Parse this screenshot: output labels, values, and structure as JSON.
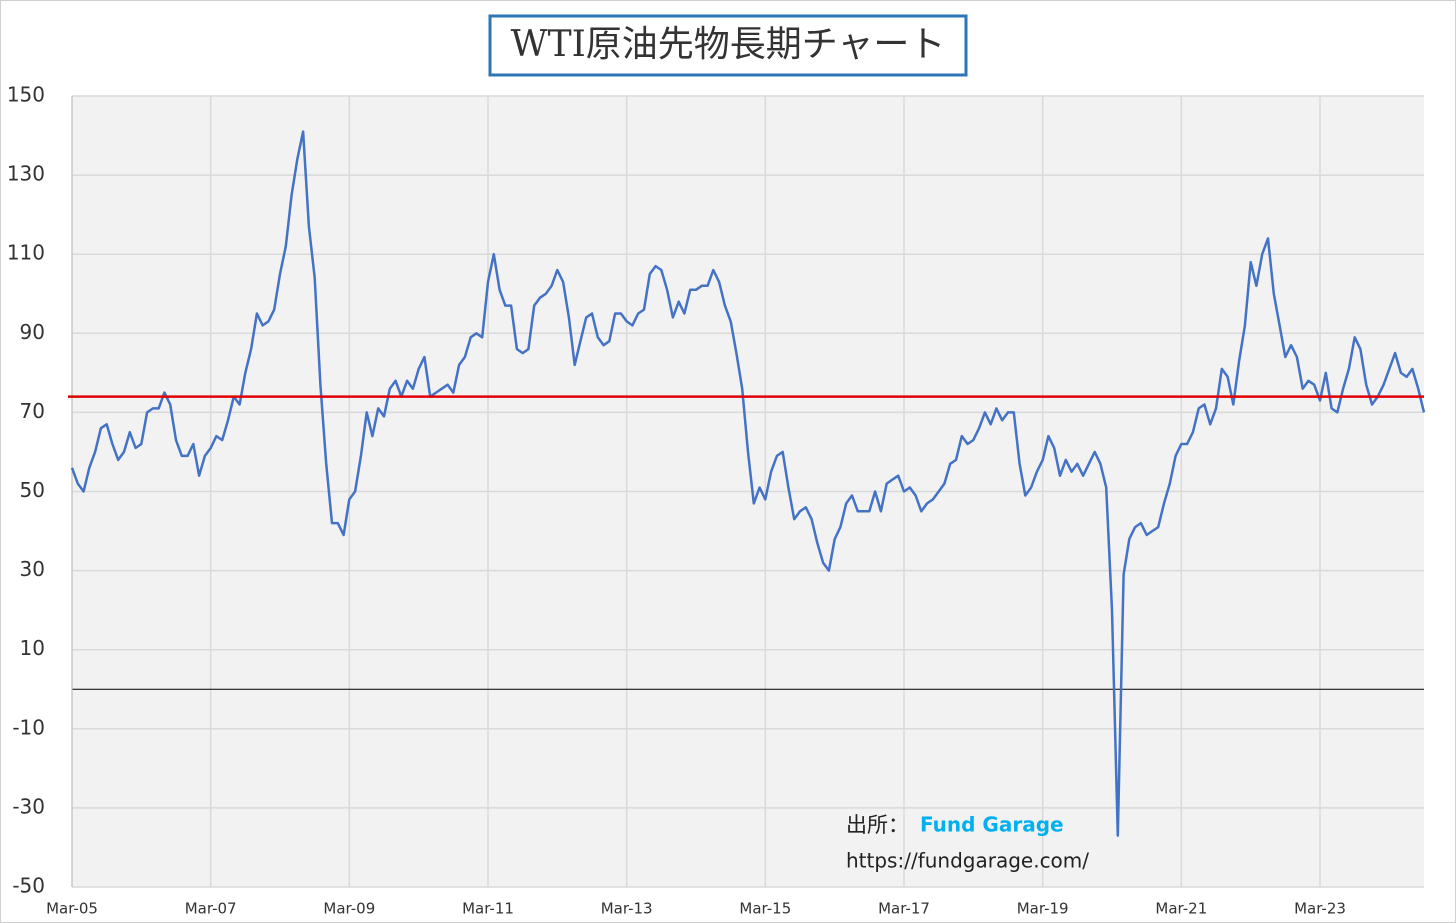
{
  "chart_data": {
    "type": "line",
    "title": "WTI原油先物長期チャート",
    "annotation": {
      "prefix": "出所：",
      "source": "Fund Garage",
      "url": "https://fundgarage.com/"
    },
    "source_color": "#00b0f0",
    "ylim": [
      -50,
      150
    ],
    "yticks": [
      -50,
      -30,
      -10,
      10,
      30,
      50,
      70,
      90,
      110,
      130,
      150
    ],
    "negative_tick_color": "#ff0000",
    "xlim": [
      "2005-03",
      "2024-09"
    ],
    "xticks": [
      {
        "value": "2005-03",
        "label": "Mar-05"
      },
      {
        "value": "2007-03",
        "label": "Mar-07"
      },
      {
        "value": "2009-03",
        "label": "Mar-09"
      },
      {
        "value": "2011-03",
        "label": "Mar-11"
      },
      {
        "value": "2013-03",
        "label": "Mar-13"
      },
      {
        "value": "2015-03",
        "label": "Mar-15"
      },
      {
        "value": "2017-03",
        "label": "Mar-17"
      },
      {
        "value": "2019-03",
        "label": "Mar-19"
      },
      {
        "value": "2021-03",
        "label": "Mar-21"
      },
      {
        "value": "2023-03",
        "label": "Mar-23"
      }
    ],
    "grid": true,
    "hline": {
      "value": 74,
      "color": "#e00000"
    },
    "x": [
      "2005-03",
      "2005-04",
      "2005-05",
      "2005-06",
      "2005-07",
      "2005-08",
      "2005-09",
      "2005-10",
      "2005-11",
      "2005-12",
      "2006-01",
      "2006-02",
      "2006-03",
      "2006-04",
      "2006-05",
      "2006-06",
      "2006-07",
      "2006-08",
      "2006-09",
      "2006-10",
      "2006-11",
      "2006-12",
      "2007-01",
      "2007-02",
      "2007-03",
      "2007-04",
      "2007-05",
      "2007-06",
      "2007-07",
      "2007-08",
      "2007-09",
      "2007-10",
      "2007-11",
      "2007-12",
      "2008-01",
      "2008-02",
      "2008-03",
      "2008-04",
      "2008-05",
      "2008-06",
      "2008-07",
      "2008-08",
      "2008-09",
      "2008-10",
      "2008-11",
      "2008-12",
      "2009-01",
      "2009-02",
      "2009-03",
      "2009-04",
      "2009-05",
      "2009-06",
      "2009-07",
      "2009-08",
      "2009-09",
      "2009-10",
      "2009-11",
      "2009-12",
      "2010-01",
      "2010-02",
      "2010-03",
      "2010-04",
      "2010-05",
      "2010-06",
      "2010-07",
      "2010-08",
      "2010-09",
      "2010-10",
      "2010-11",
      "2010-12",
      "2011-01",
      "2011-02",
      "2011-03",
      "2011-04",
      "2011-05",
      "2011-06",
      "2011-07",
      "2011-08",
      "2011-09",
      "2011-10",
      "2011-11",
      "2011-12",
      "2012-01",
      "2012-02",
      "2012-03",
      "2012-04",
      "2012-05",
      "2012-06",
      "2012-07",
      "2012-08",
      "2012-09",
      "2012-10",
      "2012-11",
      "2012-12",
      "2013-01",
      "2013-02",
      "2013-03",
      "2013-04",
      "2013-05",
      "2013-06",
      "2013-07",
      "2013-08",
      "2013-09",
      "2013-10",
      "2013-11",
      "2013-12",
      "2014-01",
      "2014-02",
      "2014-03",
      "2014-04",
      "2014-05",
      "2014-06",
      "2014-07",
      "2014-08",
      "2014-09",
      "2014-10",
      "2014-11",
      "2014-12",
      "2015-01",
      "2015-02",
      "2015-03",
      "2015-04",
      "2015-05",
      "2015-06",
      "2015-07",
      "2015-08",
      "2015-09",
      "2015-10",
      "2015-11",
      "2015-12",
      "2016-01",
      "2016-02",
      "2016-03",
      "2016-04",
      "2016-05",
      "2016-06",
      "2016-07",
      "2016-08",
      "2016-09",
      "2016-10",
      "2016-11",
      "2016-12",
      "2017-01",
      "2017-02",
      "2017-03",
      "2017-04",
      "2017-05",
      "2017-06",
      "2017-07",
      "2017-08",
      "2017-09",
      "2017-10",
      "2017-11",
      "2017-12",
      "2018-01",
      "2018-02",
      "2018-03",
      "2018-04",
      "2018-05",
      "2018-06",
      "2018-07",
      "2018-08",
      "2018-09",
      "2018-10",
      "2018-11",
      "2018-12",
      "2019-01",
      "2019-02",
      "2019-03",
      "2019-04",
      "2019-05",
      "2019-06",
      "2019-07",
      "2019-08",
      "2019-09",
      "2019-10",
      "2019-11",
      "2019-12",
      "2020-01",
      "2020-02",
      "2020-03",
      "2020-04",
      "2020-05",
      "2020-06",
      "2020-07",
      "2020-08",
      "2020-09",
      "2020-10",
      "2020-11",
      "2020-12",
      "2021-01",
      "2021-02",
      "2021-03",
      "2021-04",
      "2021-05",
      "2021-06",
      "2021-07",
      "2021-08",
      "2021-09",
      "2021-10",
      "2021-11",
      "2021-12",
      "2022-01",
      "2022-02",
      "2022-03",
      "2022-04",
      "2022-05",
      "2022-06",
      "2022-07",
      "2022-08",
      "2022-09",
      "2022-10",
      "2022-11",
      "2022-12",
      "2023-01",
      "2023-02",
      "2023-03",
      "2023-04",
      "2023-05",
      "2023-06",
      "2023-07",
      "2023-08",
      "2023-09",
      "2023-10",
      "2023-11",
      "2023-12",
      "2024-01",
      "2024-02",
      "2024-03",
      "2024-04",
      "2024-05",
      "2024-06",
      "2024-07",
      "2024-08",
      "2024-09"
    ],
    "series": [
      {
        "name": "WTI",
        "color": "#4472c4",
        "values": [
          56,
          52,
          50,
          56,
          60,
          66,
          67,
          62,
          58,
          60,
          65,
          61,
          62,
          70,
          71,
          71,
          75,
          72,
          63,
          59,
          59,
          62,
          54,
          59,
          61,
          64,
          63,
          68,
          74,
          72,
          80,
          86,
          95,
          92,
          93,
          96,
          105,
          112,
          125,
          134,
          141,
          117,
          104,
          77,
          57,
          42,
          42,
          39,
          48,
          50,
          59,
          70,
          64,
          71,
          69,
          76,
          78,
          74,
          78,
          76,
          81,
          84,
          74,
          75,
          76,
          77,
          75,
          82,
          84,
          89,
          90,
          89,
          103,
          110,
          101,
          97,
          97,
          86,
          85,
          86,
          97,
          99,
          100,
          102,
          106,
          103,
          94,
          82,
          88,
          94,
          95,
          89,
          87,
          88,
          95,
          95,
          93,
          92,
          95,
          96,
          105,
          107,
          106,
          101,
          94,
          98,
          95,
          101,
          101,
          102,
          102,
          106,
          103,
          97,
          93,
          85,
          76,
          60,
          47,
          51,
          48,
          55,
          59,
          60,
          51,
          43,
          45,
          46,
          43,
          37,
          32,
          30,
          38,
          41,
          47,
          49,
          45,
          45,
          45,
          50,
          45,
          52,
          53,
          54,
          50,
          51,
          49,
          45,
          47,
          48,
          50,
          52,
          57,
          58,
          64,
          62,
          63,
          66,
          70,
          67,
          71,
          68,
          70,
          70,
          57,
          49,
          51,
          55,
          58,
          64,
          61,
          54,
          58,
          55,
          57,
          54,
          57,
          60,
          57,
          51,
          20,
          -37,
          29,
          38,
          41,
          42,
          39,
          40,
          41,
          47,
          52,
          59,
          62,
          62,
          65,
          71,
          72,
          67,
          71,
          81,
          79,
          72,
          83,
          92,
          108,
          102,
          110,
          114,
          100,
          92,
          84,
          87,
          84,
          76,
          78,
          77,
          73,
          80,
          71,
          70,
          76,
          81,
          89,
          86,
          77,
          72,
          74,
          77,
          81,
          85,
          80,
          79,
          81,
          76,
          70
        ]
      }
    ]
  }
}
